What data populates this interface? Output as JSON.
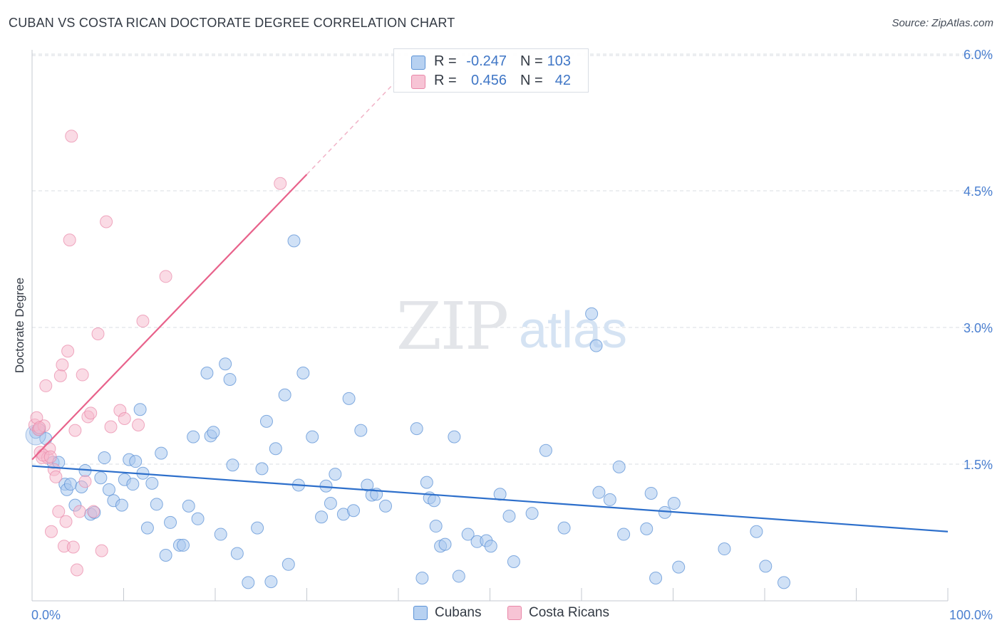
{
  "title": "CUBAN VS COSTA RICAN DOCTORATE DEGREE CORRELATION CHART",
  "source": "Source: ZipAtlas.com",
  "watermark": {
    "zip": "ZIP",
    "atlas": "atlas"
  },
  "legend_top": {
    "rows": [
      {
        "r_label": "R =",
        "r_value": "-0.247",
        "n_label": "N =",
        "n_value": "103"
      },
      {
        "r_label": "R =",
        "r_value": "0.456",
        "n_label": "N =",
        "n_value": "42"
      }
    ]
  },
  "legend_bottom": {
    "cubans": "Cubans",
    "costa_ricans": "Costa Ricans"
  },
  "colors": {
    "cubans_fill": "#aac8ee",
    "cubans_stroke": "#5c92d6",
    "cubans_line": "#2d6fcb",
    "costa_fill": "#f5b8cc",
    "costa_stroke": "#e987a8",
    "costa_line": "#e8628b",
    "tick_label": "#4a7fd0",
    "grid": "#d9dde3"
  },
  "chart_data": {
    "type": "scatter",
    "title": "CUBAN VS COSTA RICAN DOCTORATE DEGREE CORRELATION CHART",
    "xlabel": "",
    "ylabel": "Doctorate Degree",
    "xlim": [
      0,
      100
    ],
    "ylim": [
      0,
      6.2
    ],
    "x_tick_labels": {
      "min": "0.0%",
      "max": "100.0%"
    },
    "y_ticks": [
      1.5,
      3.0,
      4.5,
      6.0
    ],
    "y_tick_labels": [
      "1.5%",
      "3.0%",
      "4.5%",
      "6.0%"
    ],
    "series": [
      {
        "name": "Cubans",
        "r": -0.247,
        "n": 103,
        "trend": {
          "x0": 0,
          "y0": 1.48,
          "x1": 100,
          "y1": 0.76
        },
        "points": [
          [
            0.4,
            1.85
          ],
          [
            0.8,
            1.88
          ],
          [
            1.5,
            1.78
          ],
          [
            2.3,
            1.52
          ],
          [
            2.9,
            1.52
          ],
          [
            3.6,
            1.28
          ],
          [
            3.8,
            1.22
          ],
          [
            4.2,
            1.28
          ],
          [
            4.7,
            1.05
          ],
          [
            5.4,
            1.25
          ],
          [
            5.8,
            1.43
          ],
          [
            6.4,
            0.95
          ],
          [
            6.8,
            0.97
          ],
          [
            7.5,
            1.35
          ],
          [
            7.9,
            1.57
          ],
          [
            8.4,
            1.22
          ],
          [
            8.9,
            1.1
          ],
          [
            9.8,
            1.05
          ],
          [
            10.1,
            1.33
          ],
          [
            10.6,
            1.55
          ],
          [
            11.0,
            1.28
          ],
          [
            11.3,
            1.53
          ],
          [
            11.8,
            2.1
          ],
          [
            12.1,
            1.4
          ],
          [
            12.6,
            0.8
          ],
          [
            13.1,
            1.29
          ],
          [
            13.6,
            1.06
          ],
          [
            14.1,
            1.62
          ],
          [
            14.6,
            0.5
          ],
          [
            15.1,
            0.86
          ],
          [
            16.1,
            0.61
          ],
          [
            16.5,
            0.61
          ],
          [
            17.1,
            1.04
          ],
          [
            17.6,
            1.8
          ],
          [
            18.1,
            0.9
          ],
          [
            19.1,
            2.5
          ],
          [
            19.5,
            1.81
          ],
          [
            19.8,
            1.85
          ],
          [
            20.6,
            0.73
          ],
          [
            21.1,
            2.6
          ],
          [
            21.6,
            2.43
          ],
          [
            21.9,
            1.49
          ],
          [
            22.4,
            0.52
          ],
          [
            23.6,
            0.2
          ],
          [
            24.6,
            0.8
          ],
          [
            25.1,
            1.45
          ],
          [
            25.6,
            1.97
          ],
          [
            26.1,
            0.21
          ],
          [
            26.6,
            1.67
          ],
          [
            27.6,
            2.26
          ],
          [
            28.0,
            0.4
          ],
          [
            28.6,
            3.95
          ],
          [
            29.1,
            1.27
          ],
          [
            29.6,
            2.5
          ],
          [
            30.6,
            1.8
          ],
          [
            31.6,
            0.92
          ],
          [
            32.1,
            1.26
          ],
          [
            32.6,
            1.07
          ],
          [
            33.1,
            1.39
          ],
          [
            34.0,
            0.95
          ],
          [
            34.6,
            2.22
          ],
          [
            35.1,
            0.99
          ],
          [
            35.9,
            1.87
          ],
          [
            36.6,
            1.27
          ],
          [
            37.1,
            1.16
          ],
          [
            37.6,
            1.17
          ],
          [
            38.6,
            1.04
          ],
          [
            42.0,
            1.89
          ],
          [
            42.6,
            0.25
          ],
          [
            43.1,
            1.3
          ],
          [
            43.4,
            1.13
          ],
          [
            43.9,
            1.1
          ],
          [
            44.1,
            0.82
          ],
          [
            44.6,
            0.6
          ],
          [
            45.1,
            0.62
          ],
          [
            46.1,
            1.8
          ],
          [
            46.6,
            0.27
          ],
          [
            47.6,
            0.73
          ],
          [
            48.6,
            0.65
          ],
          [
            49.6,
            0.66
          ],
          [
            50.1,
            0.6
          ],
          [
            51.1,
            1.17
          ],
          [
            52.1,
            0.93
          ],
          [
            52.6,
            0.43
          ],
          [
            54.6,
            0.96
          ],
          [
            56.1,
            1.65
          ],
          [
            58.1,
            0.8
          ],
          [
            61.1,
            3.15
          ],
          [
            61.6,
            2.8
          ],
          [
            61.9,
            1.19
          ],
          [
            63.1,
            1.11
          ],
          [
            64.1,
            1.47
          ],
          [
            64.6,
            0.73
          ],
          [
            67.1,
            0.79
          ],
          [
            67.6,
            1.18
          ],
          [
            68.1,
            0.25
          ],
          [
            69.1,
            0.97
          ],
          [
            70.1,
            1.07
          ],
          [
            70.6,
            0.37
          ],
          [
            75.6,
            0.57
          ],
          [
            79.1,
            0.76
          ],
          [
            80.1,
            0.38
          ],
          [
            82.1,
            0.2
          ]
        ]
      },
      {
        "name": "Costa Ricans",
        "r": 0.456,
        "n": 42,
        "trend": {
          "x0": 0,
          "y0": 1.55,
          "x1": 30,
          "y1": 4.68,
          "dash_x1": 40,
          "dash_y1": 5.73
        },
        "points": [
          [
            0.3,
            1.93
          ],
          [
            0.5,
            2.01
          ],
          [
            0.7,
            1.88
          ],
          [
            0.9,
            1.63
          ],
          [
            1.1,
            1.57
          ],
          [
            1.3,
            1.92
          ],
          [
            1.5,
            2.36
          ],
          [
            1.7,
            1.57
          ],
          [
            1.9,
            1.67
          ],
          [
            2.1,
            0.76
          ],
          [
            2.4,
            1.44
          ],
          [
            2.6,
            1.36
          ],
          [
            2.9,
            0.98
          ],
          [
            3.1,
            2.47
          ],
          [
            3.3,
            2.59
          ],
          [
            3.5,
            0.6
          ],
          [
            3.7,
            0.87
          ],
          [
            3.9,
            2.74
          ],
          [
            4.1,
            3.96
          ],
          [
            4.3,
            5.1
          ],
          [
            4.5,
            0.59
          ],
          [
            4.7,
            1.87
          ],
          [
            4.9,
            0.34
          ],
          [
            5.2,
            0.98
          ],
          [
            5.5,
            2.48
          ],
          [
            5.8,
            1.31
          ],
          [
            6.1,
            2.02
          ],
          [
            6.4,
            2.06
          ],
          [
            6.7,
            0.98
          ],
          [
            7.2,
            2.93
          ],
          [
            7.6,
            0.55
          ],
          [
            8.1,
            4.16
          ],
          [
            8.6,
            1.91
          ],
          [
            9.6,
            2.09
          ],
          [
            10.1,
            2.0
          ],
          [
            11.6,
            1.93
          ],
          [
            12.1,
            3.07
          ],
          [
            14.6,
            3.56
          ],
          [
            27.1,
            4.58
          ],
          [
            1.2,
            1.6
          ],
          [
            2.0,
            1.58
          ],
          [
            0.8,
            1.9
          ]
        ]
      }
    ]
  }
}
